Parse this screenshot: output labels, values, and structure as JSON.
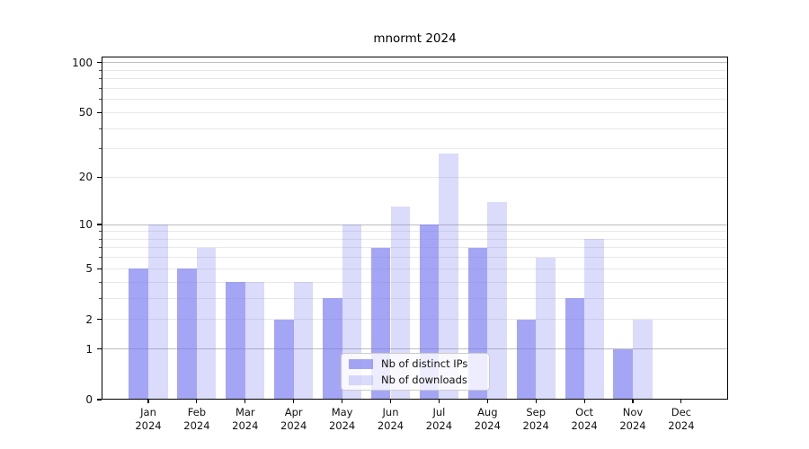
{
  "chart_data": {
    "type": "bar",
    "title": "mnormt 2024",
    "categories": [
      "Jan\n2024",
      "Feb\n2024",
      "Mar\n2024",
      "Apr\n2024",
      "May\n2024",
      "Jun\n2024",
      "Jul\n2024",
      "Aug\n2024",
      "Sep\n2024",
      "Oct\n2024",
      "Nov\n2024",
      "Dec\n2024"
    ],
    "series": [
      {
        "name": "Nb of distinct IPs",
        "color": "#7979F1",
        "alpha": 0.67,
        "values": [
          5,
          5,
          4,
          2,
          3,
          7,
          10,
          7,
          2,
          3,
          1,
          0
        ]
      },
      {
        "name": "Nb of downloads",
        "color": "#7979F1",
        "alpha": 0.27,
        "values": [
          10,
          7,
          4,
          4,
          10,
          13,
          28,
          14,
          6,
          8,
          2,
          0
        ]
      }
    ],
    "yscale": "log1p",
    "ylim": [
      0,
      109
    ],
    "yticks_labeled": [
      0,
      1,
      2,
      5,
      10,
      20,
      50,
      100
    ],
    "gridlines_major": [
      1,
      10,
      100
    ],
    "gridlines_minor": [
      2,
      3,
      4,
      5,
      6,
      7,
      8,
      9,
      20,
      30,
      40,
      50,
      60,
      70,
      80,
      90
    ],
    "grid": "on",
    "grid_colors": {
      "major": "#bdbdbd",
      "minor": "#e8e8e8"
    },
    "legend_position": "lower center",
    "xlabel": "",
    "ylabel": ""
  }
}
